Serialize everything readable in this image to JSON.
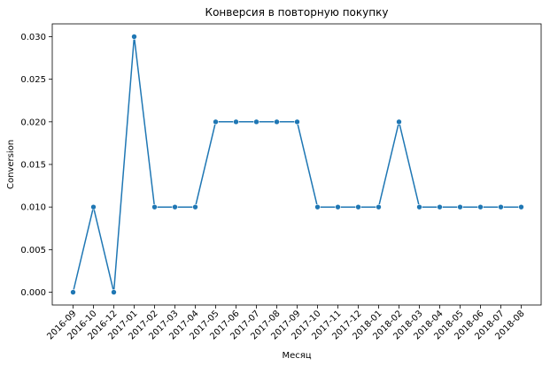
{
  "chart_data": {
    "type": "line",
    "title": "Конверсия в повторную покупку",
    "xlabel": "Месяц",
    "ylabel": "Conversion",
    "categories": [
      "2016-09",
      "2016-10",
      "2016-12",
      "2017-01",
      "2017-02",
      "2017-03",
      "2017-04",
      "2017-05",
      "2017-06",
      "2017-07",
      "2017-08",
      "2017-09",
      "2017-10",
      "2017-11",
      "2017-12",
      "2018-01",
      "2018-02",
      "2018-03",
      "2018-04",
      "2018-05",
      "2018-06",
      "2018-07",
      "2018-08"
    ],
    "series": [
      {
        "values": [
          0.0,
          0.01,
          0.0,
          0.03,
          0.01,
          0.01,
          0.01,
          0.02,
          0.02,
          0.02,
          0.02,
          0.02,
          0.01,
          0.01,
          0.01,
          0.01,
          0.02,
          0.01,
          0.01,
          0.01,
          0.01,
          0.01,
          0.01
        ]
      }
    ],
    "ylim": [
      -0.0015,
      0.0315
    ],
    "yticks": [
      "0.000",
      "0.005",
      "0.010",
      "0.015",
      "0.020",
      "0.025",
      "0.030"
    ],
    "grid": false,
    "legend": "none",
    "line_color": "#1f77b4",
    "marker": "circle"
  }
}
